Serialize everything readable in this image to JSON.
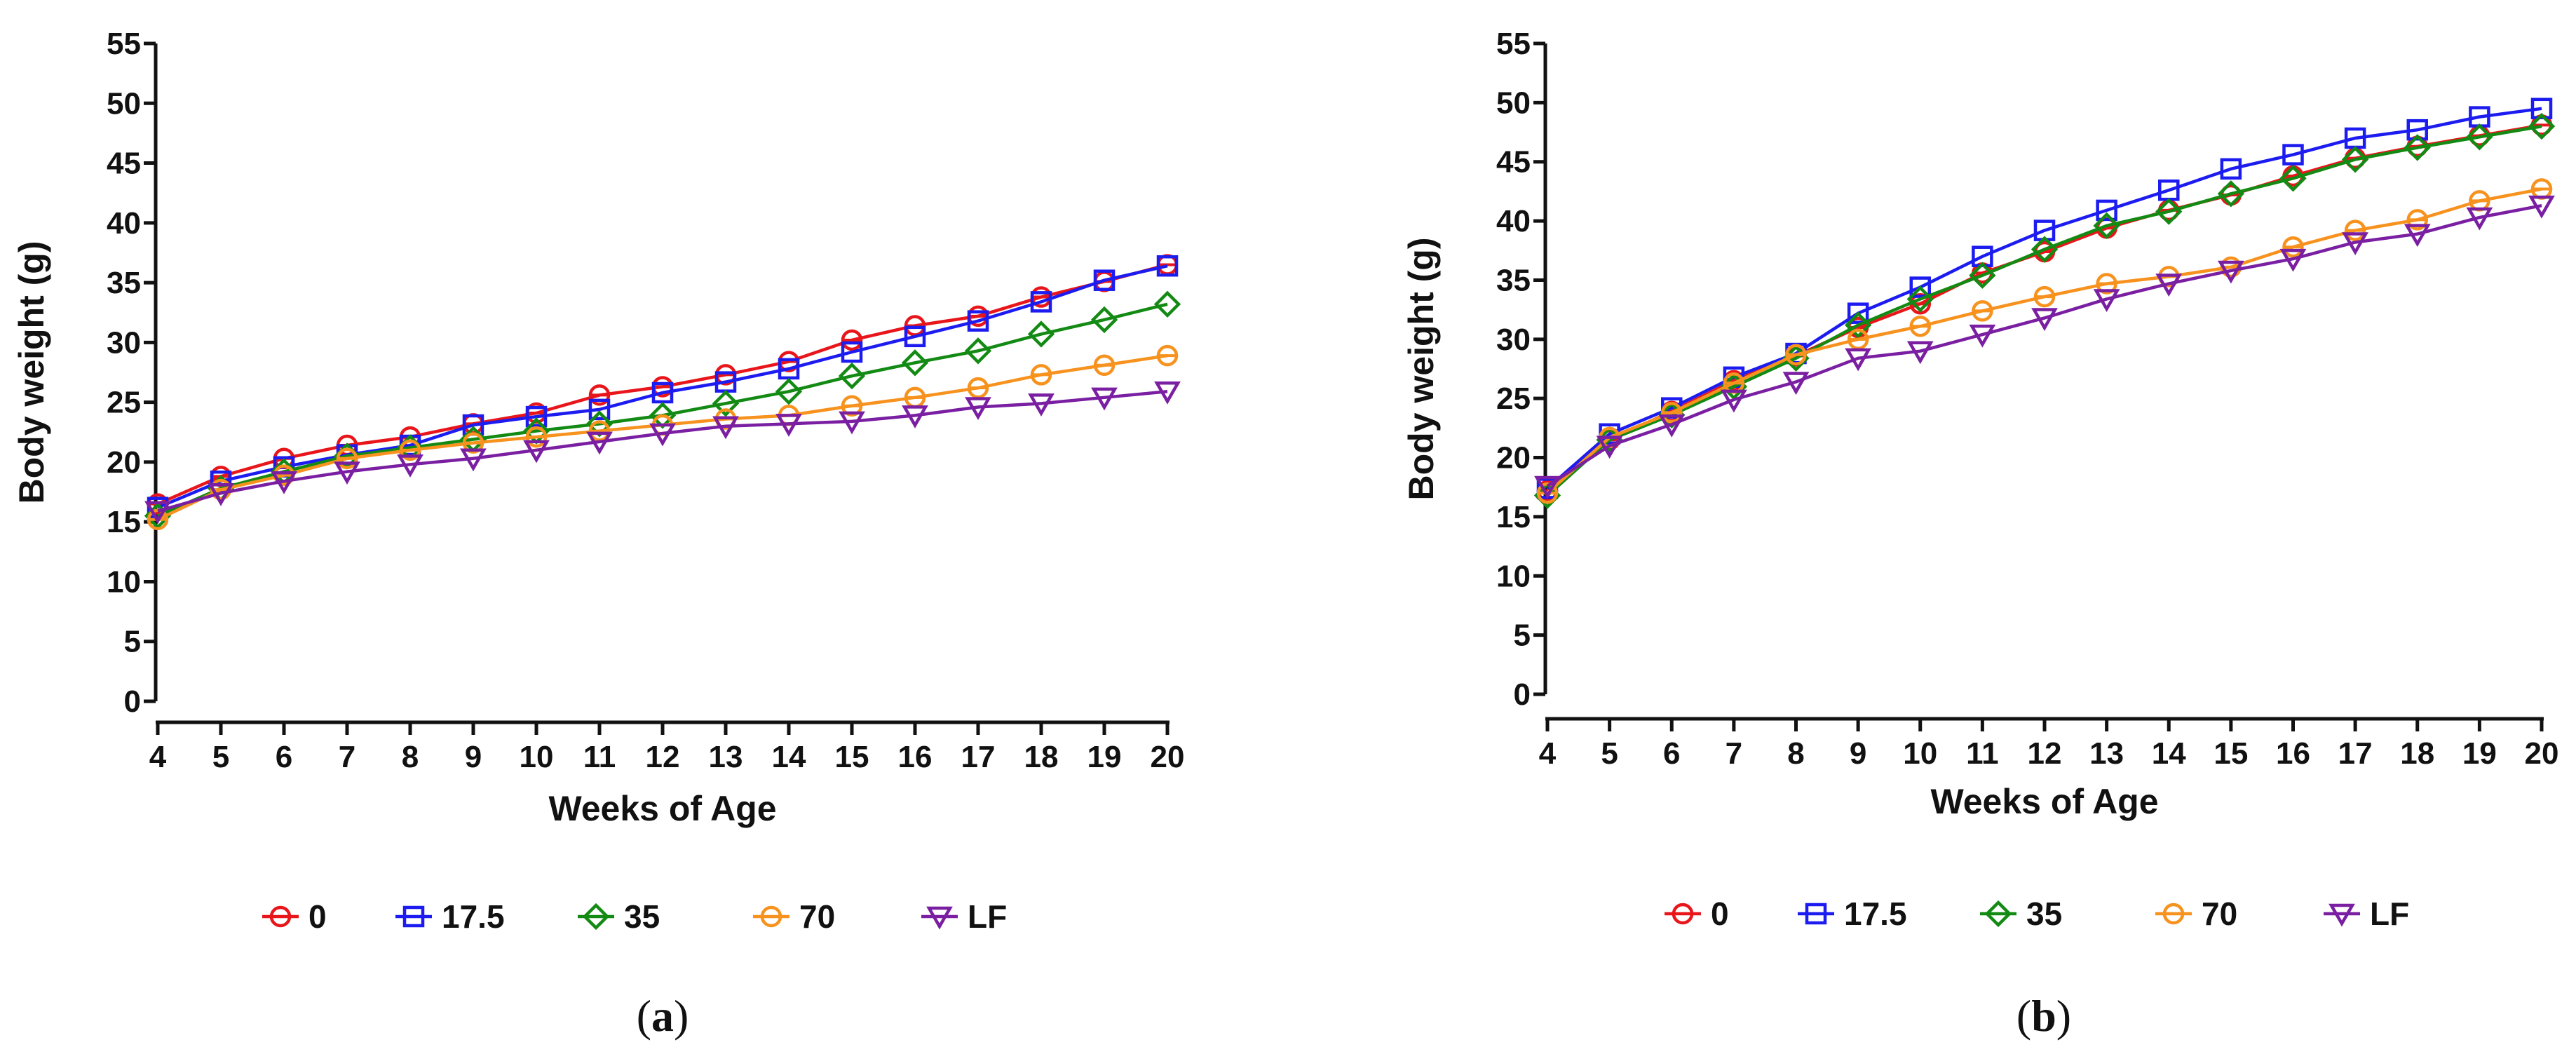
{
  "chart_data": [
    {
      "panel_label": "(a)",
      "type": "line",
      "xlabel": "Weeks of Age",
      "ylabel": "Body weight (g)",
      "xlim": [
        4,
        20
      ],
      "ylim": [
        0,
        55
      ],
      "x_ticks": [
        4,
        5,
        6,
        7,
        8,
        9,
        10,
        11,
        12,
        13,
        14,
        15,
        16,
        17,
        18,
        19,
        20
      ],
      "y_ticks": [
        0,
        5,
        10,
        15,
        20,
        25,
        30,
        35,
        40,
        45,
        50,
        55
      ],
      "x": [
        4,
        5,
        6,
        7,
        8,
        9,
        10,
        11,
        12,
        13,
        14,
        15,
        16,
        17,
        18,
        19,
        20
      ],
      "series": [
        {
          "name": "0",
          "color": "#e8161b",
          "marker": "circle",
          "values": [
            16.5,
            18.8,
            20.3,
            21.4,
            22.1,
            23.2,
            24.1,
            25.6,
            26.3,
            27.3,
            28.4,
            30.2,
            31.4,
            32.2,
            33.8,
            35.1,
            36.5
          ]
        },
        {
          "name": "17.5",
          "color": "#1c1cf0",
          "marker": "square",
          "values": [
            16.2,
            18.4,
            19.6,
            20.6,
            21.4,
            23.1,
            23.8,
            24.4,
            25.8,
            26.7,
            27.8,
            29.2,
            30.5,
            31.8,
            33.4,
            35.2,
            36.4
          ]
        },
        {
          "name": "35",
          "color": "#138a13",
          "marker": "diamond",
          "values": [
            15.5,
            17.8,
            19.2,
            20.5,
            21.2,
            21.9,
            22.6,
            23.2,
            23.9,
            24.9,
            25.9,
            27.2,
            28.3,
            29.3,
            30.7,
            31.9,
            33.2
          ]
        },
        {
          "name": "70",
          "color": "#f7921e",
          "marker": "circle",
          "values": [
            15.2,
            17.7,
            18.9,
            20.3,
            21.0,
            21.6,
            22.1,
            22.6,
            23.1,
            23.6,
            23.9,
            24.7,
            25.4,
            26.2,
            27.3,
            28.1,
            28.9
          ]
        },
        {
          "name": "LF",
          "color": "#7a1fa2",
          "marker": "triangle-down",
          "values": [
            15.9,
            17.4,
            18.4,
            19.2,
            19.8,
            20.3,
            21.0,
            21.7,
            22.4,
            23.0,
            23.2,
            23.4,
            23.9,
            24.6,
            24.9,
            25.4,
            25.9
          ]
        }
      ]
    },
    {
      "panel_label": "(b)",
      "type": "line",
      "xlabel": "Weeks of Age",
      "ylabel": "Body weight (g)",
      "xlim": [
        4,
        20
      ],
      "ylim": [
        0,
        55
      ],
      "x_ticks": [
        4,
        5,
        6,
        7,
        8,
        9,
        10,
        11,
        12,
        13,
        14,
        15,
        16,
        17,
        18,
        19,
        20
      ],
      "y_ticks": [
        0,
        5,
        10,
        15,
        20,
        25,
        30,
        35,
        40,
        45,
        50,
        55
      ],
      "x": [
        4,
        5,
        6,
        7,
        8,
        9,
        10,
        11,
        12,
        13,
        14,
        15,
        16,
        17,
        18,
        19,
        20
      ],
      "series": [
        {
          "name": "0",
          "color": "#e8161b",
          "marker": "circle",
          "values": [
            17.2,
            21.5,
            23.9,
            26.5,
            28.6,
            31.0,
            33.0,
            35.6,
            37.4,
            39.4,
            40.9,
            42.2,
            43.8,
            45.3,
            46.3,
            47.2,
            48.1
          ]
        },
        {
          "name": "17.5",
          "color": "#1c1cf0",
          "marker": "square",
          "values": [
            17.4,
            22.0,
            24.2,
            26.8,
            28.8,
            32.2,
            34.4,
            37.0,
            39.2,
            40.9,
            42.6,
            44.4,
            45.6,
            47.0,
            47.7,
            48.8,
            49.5
          ]
        },
        {
          "name": "35",
          "color": "#138a13",
          "marker": "diamond",
          "values": [
            16.8,
            21.5,
            23.6,
            26.0,
            28.4,
            31.2,
            33.4,
            35.4,
            37.6,
            39.6,
            40.8,
            42.3,
            43.6,
            45.2,
            46.2,
            47.1,
            48.0
          ]
        },
        {
          "name": "70",
          "color": "#f7921e",
          "marker": "circle",
          "values": [
            17.0,
            21.7,
            23.8,
            26.3,
            28.7,
            30.0,
            31.1,
            32.4,
            33.6,
            34.7,
            35.3,
            36.1,
            37.8,
            39.2,
            40.1,
            41.7,
            42.7
          ]
        },
        {
          "name": "LF",
          "color": "#7a1fa2",
          "marker": "triangle-down",
          "values": [
            17.6,
            21.0,
            22.8,
            24.9,
            26.4,
            28.4,
            29.0,
            30.4,
            31.8,
            33.4,
            34.7,
            35.8,
            36.8,
            38.2,
            38.9,
            40.3,
            41.3
          ]
        }
      ]
    }
  ]
}
